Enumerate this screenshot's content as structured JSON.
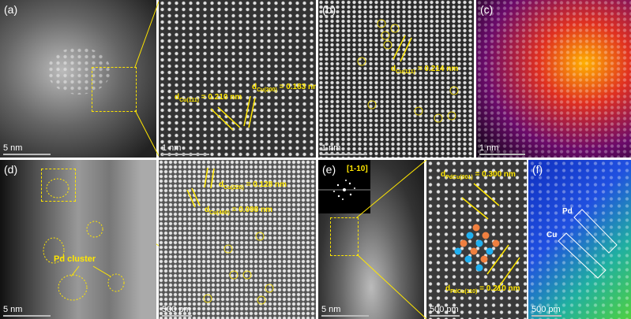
{
  "panels": {
    "a": {
      "label": "(a)",
      "scale": "5 nm"
    },
    "a_zoom": {
      "scale": "1 nm",
      "d1_pre": "d",
      "d1_sub": "Cu(111)",
      "d1_val": " = 0.210 nm",
      "d2_pre": "d",
      "d2_sub": "Cu(200)",
      "d2_val": " = 0.183 nm"
    },
    "b": {
      "label": "(b)",
      "scale": "1 nm",
      "d_pre": "d",
      "d_sub": "Cu(111)",
      "d_val": " = 0.214 nm"
    },
    "c": {
      "label": "(c)",
      "scale": "1 nm"
    },
    "d": {
      "label": "(d)",
      "scale": "5 nm",
      "annotation": "Pd cluster"
    },
    "d_zoom": {
      "scale": "500 pm",
      "d1_pre": "d",
      "d1_sub": "Cu(220)",
      "d1_val": " = 0.128 nm",
      "d2_pre": "d",
      "d2_sub": "Cu(400)",
      "d2_val": " = 0.098 nm"
    },
    "e": {
      "label": "(e)",
      "scale": "5 nm",
      "zone_axis": "[1-10]"
    },
    "e_zoom": {
      "scale": "500 pm",
      "d1_pre": "d",
      "d1_sub": "PdCu(001)",
      "d1_val": " = 0.300 nm",
      "d2_pre": "d",
      "d2_sub": "PdCu(110)",
      "d2_val": " = 0.210 nm"
    },
    "f": {
      "label": "(f)",
      "scale": "500 pm",
      "pd": "Pd",
      "cu": "Cu"
    }
  },
  "colors": {
    "annotation": "#ffe600",
    "pd_atom": "#f08040",
    "cu_atom": "#20b0f0"
  }
}
